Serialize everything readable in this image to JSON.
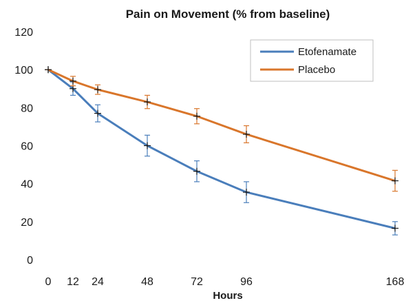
{
  "chart_data": {
    "type": "line",
    "title": "Pain on Movement (% from baseline)",
    "xlabel": "Hours",
    "ylabel": "",
    "x": [
      0,
      12,
      24,
      48,
      72,
      96,
      168
    ],
    "x_ticks": [
      "0",
      "12",
      "24",
      "48",
      "72",
      "96",
      "168"
    ],
    "xlim": [
      0,
      168
    ],
    "ylim": [
      0,
      120
    ],
    "y_ticks": [
      "0",
      "20",
      "40",
      "60",
      "80",
      "100",
      "120"
    ],
    "y_tick_values": [
      0,
      20,
      40,
      60,
      80,
      100,
      120
    ],
    "grid": false,
    "legend_position": "top-right",
    "series": [
      {
        "name": "Etofenamate",
        "color": "#4a7ebb",
        "values": [
          100,
          90,
          77,
          60,
          46.5,
          35.5,
          16.5
        ],
        "error": [
          0,
          3.5,
          4.5,
          5.5,
          5.5,
          5.5,
          3.5
        ]
      },
      {
        "name": "Placebo",
        "color": "#d9762b",
        "values": [
          100,
          94,
          89.5,
          83,
          75.5,
          66,
          41.5
        ],
        "error": [
          0,
          2.5,
          2.5,
          3.5,
          4,
          4.5,
          5.5
        ]
      }
    ]
  }
}
